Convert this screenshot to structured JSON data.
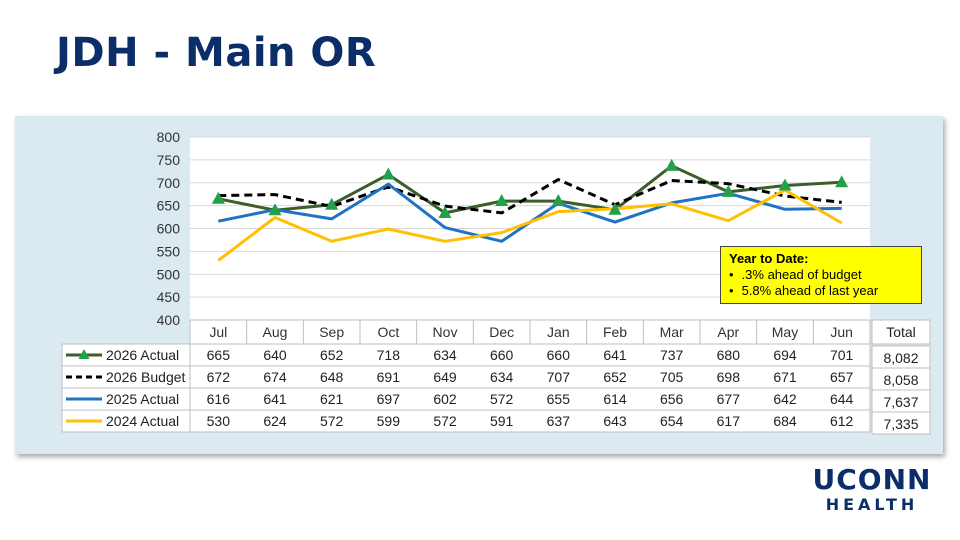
{
  "slide": {
    "title": "JDH - Main OR"
  },
  "ytd_box": {
    "title": "Year to Date:",
    "bullets": [
      ".3% ahead of budget",
      "5.8% ahead of last year"
    ]
  },
  "logo": {
    "line1": "UCONN",
    "line2": "HEALTH"
  },
  "chart_data": {
    "type": "line",
    "categories": [
      "Jul",
      "Aug",
      "Sep",
      "Oct",
      "Nov",
      "Dec",
      "Jan",
      "Feb",
      "Mar",
      "Apr",
      "May",
      "Jun"
    ],
    "ylim": [
      400,
      800
    ],
    "yticks": [
      400,
      450,
      500,
      550,
      600,
      650,
      700,
      750,
      800
    ],
    "grid": true,
    "legend": "data-table",
    "total_header": "Total",
    "series": [
      {
        "name": "2026 Actual",
        "color": "#3b5e2b",
        "marker": "triangle",
        "marker_color": "#22a04a",
        "dash": "none",
        "values": [
          665,
          640,
          652,
          718,
          634,
          660,
          660,
          641,
          737,
          680,
          694,
          701
        ],
        "total": "8,082"
      },
      {
        "name": "2026 Budget",
        "color": "#000000",
        "marker": "none",
        "dash": "8,5",
        "values": [
          672,
          674,
          648,
          691,
          649,
          634,
          707,
          652,
          705,
          698,
          671,
          657
        ],
        "total": "8,058"
      },
      {
        "name": "2025 Actual",
        "color": "#1f73c1",
        "marker": "none",
        "dash": "none",
        "values": [
          616,
          641,
          621,
          697,
          602,
          572,
          655,
          614,
          656,
          677,
          642,
          644
        ],
        "total": "7,637"
      },
      {
        "name": "2024 Actual",
        "color": "#ffc000",
        "marker": "none",
        "dash": "none",
        "values": [
          530,
          624,
          572,
          599,
          572,
          591,
          637,
          643,
          654,
          617,
          684,
          612
        ],
        "total": "7,335"
      }
    ]
  }
}
